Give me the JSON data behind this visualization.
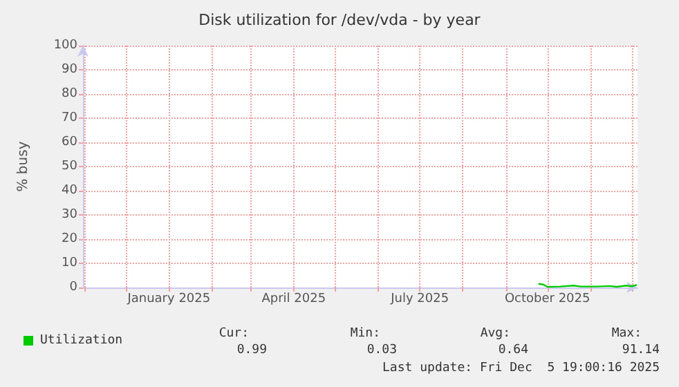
{
  "chart_data": {
    "type": "line",
    "title": "Disk utilization for /dev/vda - by year",
    "ylabel": "% busy",
    "x": [
      "2025-09-25",
      "2025-09-28",
      "2025-10-01",
      "2025-10-10",
      "2025-10-20",
      "2025-10-25",
      "2025-11-05",
      "2025-11-15",
      "2025-11-20",
      "2025-11-27",
      "2025-12-01",
      "2025-12-04"
    ],
    "series": [
      {
        "name": "Utilization",
        "color": "#00cc00",
        "values": [
          1.5,
          1.2,
          0.3,
          0.4,
          0.8,
          0.4,
          0.4,
          0.6,
          0.3,
          0.8,
          0.5,
          1.0
        ]
      }
    ],
    "xlim": [
      "2024-10-31",
      "2025-12-05"
    ],
    "xticks": [
      {
        "value": "2024-11-01",
        "label": null
      },
      {
        "value": "2024-12-01",
        "label": null
      },
      {
        "value": "2025-01-01",
        "label": "January 2025"
      },
      {
        "value": "2025-02-01",
        "label": null
      },
      {
        "value": "2025-03-01",
        "label": null
      },
      {
        "value": "2025-04-01",
        "label": "April 2025"
      },
      {
        "value": "2025-05-01",
        "label": null
      },
      {
        "value": "2025-06-01",
        "label": null
      },
      {
        "value": "2025-07-01",
        "label": "July 2025"
      },
      {
        "value": "2025-08-01",
        "label": null
      },
      {
        "value": "2025-09-01",
        "label": null
      },
      {
        "value": "2025-10-01",
        "label": "October 2025"
      },
      {
        "value": "2025-11-01",
        "label": null
      },
      {
        "value": "2025-12-01",
        "label": null
      }
    ],
    "ylim": [
      0,
      100
    ],
    "yticks": [
      0,
      10,
      20,
      30,
      40,
      50,
      60,
      70,
      80,
      90,
      100
    ],
    "grid": true,
    "legend": "bottom left",
    "marker": "none",
    "line_style": "solid",
    "annotations": [
      "Cur:",
      "Min:",
      "Avg:",
      "Max:",
      "0.99",
      "0.03",
      "0.64",
      "91.14",
      "Last update: Fri Dec  5 19:00:16 2025"
    ]
  }
}
